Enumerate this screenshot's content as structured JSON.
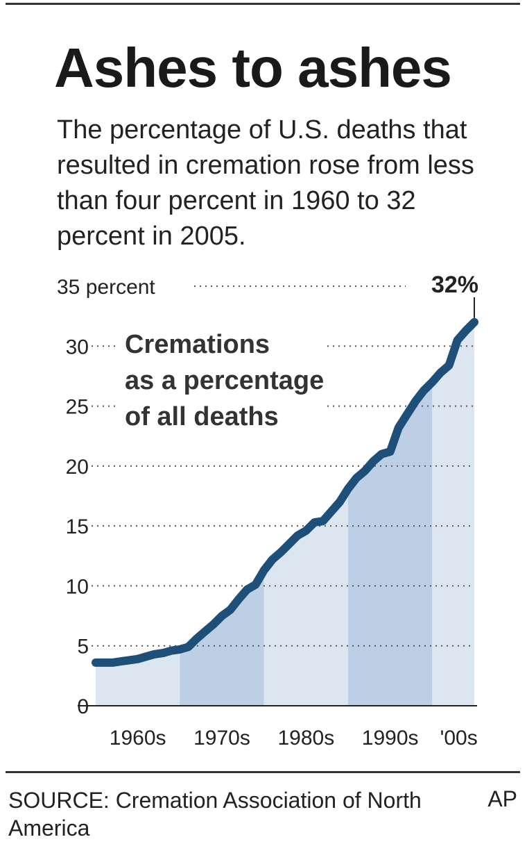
{
  "header": {
    "title": "Ashes to ashes",
    "subtitle": "The percentage of U.S. deaths that resulted in cremation rose from less than four percent in 1960 to 32 percent in 2005."
  },
  "footer": {
    "source": "SOURCE: Cremation Association of North America",
    "credit": "AP"
  },
  "colors": {
    "line": "#1d4f78",
    "band_light": "#dce6f1",
    "band_dark": "#bccfe4"
  },
  "chart_data": {
    "type": "area",
    "title": "Ashes to ashes",
    "annotation": "Cremations as a percentage of all deaths",
    "annotation_lines": [
      "Cremations",
      "as a percentage",
      "of all deaths"
    ],
    "end_label": "32%",
    "y_ticks": [
      {
        "value": 0,
        "label": "0"
      },
      {
        "value": 5,
        "label": "5"
      },
      {
        "value": 10,
        "label": "10"
      },
      {
        "value": 15,
        "label": "15"
      },
      {
        "value": 20,
        "label": "20"
      },
      {
        "value": 25,
        "label": "25"
      },
      {
        "value": 30,
        "label": "30"
      },
      {
        "value": 35,
        "label": "35 percent"
      }
    ],
    "ylim": [
      0,
      35
    ],
    "xlim": [
      1960,
      2005
    ],
    "grid": true,
    "decade_bands": [
      {
        "label": "1960s",
        "start": 1960,
        "end": 1970
      },
      {
        "label": "1970s",
        "start": 1970,
        "end": 1980
      },
      {
        "label": "1980s",
        "start": 1980,
        "end": 1990
      },
      {
        "label": "1990s",
        "start": 1990,
        "end": 2000
      },
      {
        "label": "'00s",
        "start": 2000,
        "end": 2005
      }
    ],
    "series": [
      {
        "x": [
          1960,
          1961,
          1962,
          1963,
          1964,
          1965,
          1966,
          1967,
          1968,
          1969,
          1970,
          1971,
          1972,
          1973,
          1974,
          1975,
          1976,
          1977,
          1978,
          1979,
          1980,
          1981,
          1982,
          1983,
          1984,
          1985,
          1986,
          1987,
          1988,
          1989,
          1990,
          1991,
          1992,
          1993,
          1994,
          1995,
          1996,
          1997,
          1998,
          1999,
          2000,
          2001,
          2002,
          2003,
          2004,
          2005
        ],
        "y": [
          3.6,
          3.6,
          3.6,
          3.7,
          3.8,
          3.9,
          4.1,
          4.3,
          4.4,
          4.6,
          4.7,
          4.9,
          5.6,
          6.2,
          6.8,
          7.5,
          8.0,
          8.9,
          9.7,
          10.1,
          11.3,
          12.2,
          12.8,
          13.5,
          14.2,
          14.6,
          15.3,
          15.4,
          16.2,
          17.0,
          18.1,
          19.0,
          19.6,
          20.4,
          21.0,
          21.2,
          23.2,
          24.3,
          25.4,
          26.3,
          27.0,
          27.8,
          28.4,
          30.5,
          31.3,
          32.0
        ]
      }
    ]
  }
}
